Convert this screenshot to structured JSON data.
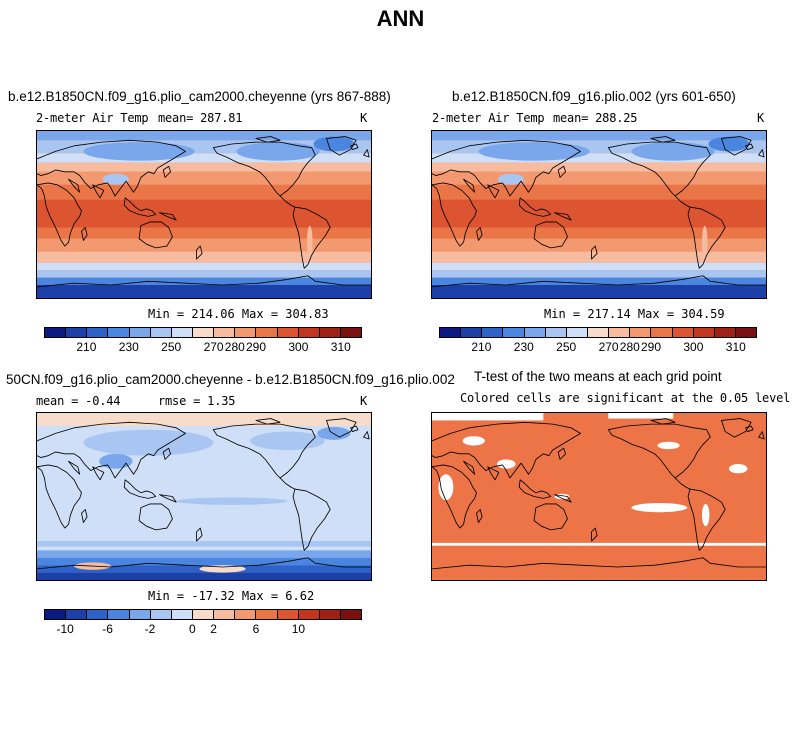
{
  "title": "ANN",
  "panels": {
    "p1": {
      "case": "b.e12.B1850CN.f09_g16.plio_cam2000.cheyenne (yrs 867-888)",
      "variable": "2-meter Air Temp",
      "mean": "mean= 287.81",
      "units": "K",
      "minmax": "Min = 214.06 Max = 304.83"
    },
    "p2": {
      "case": "b.e12.B1850CN.f09_g16.plio.002 (yrs 601-650)",
      "variable": "2-meter Air Temp",
      "mean": "mean= 288.25",
      "units": "K",
      "minmax": "Min = 217.14 Max = 304.59"
    },
    "p3": {
      "case": "50CN.f09_g16.plio_cam2000.cheyenne - b.e12.B1850CN.f09_g16.plio.002",
      "mean": "mean =  -0.44",
      "rmse": "rmse =   1.35",
      "units": "K",
      "minmax": "Min = -17.32 Max =   6.62"
    },
    "p4": {
      "title": "T-test of the two means at each grid point",
      "subtitle": "Colored cells are significant at the 0.05 level"
    }
  },
  "colorbars": {
    "temp_colors": [
      "#0a1a80",
      "#1c3fa8",
      "#2d63c8",
      "#4a86e0",
      "#7aa7ec",
      "#a9c6f2",
      "#cfdff7",
      "#f7dccb",
      "#f7bba0",
      "#f3996f",
      "#ea7547",
      "#dc5430",
      "#c23620",
      "#a02015",
      "#7a1010"
    ],
    "temp_ticks": [
      "210",
      "230",
      "250",
      "270",
      "280",
      "290",
      "300",
      "310"
    ],
    "diff_colors": [
      "#0a1a80",
      "#1c3fa8",
      "#2d63c8",
      "#4a86e0",
      "#7aa7ec",
      "#a9c6f2",
      "#cfdff7",
      "#f7dccb",
      "#f7bba0",
      "#f3996f",
      "#ea7547",
      "#dc5430",
      "#c23620",
      "#a02015",
      "#7a1010"
    ],
    "diff_ticks": [
      "-10",
      "-6",
      "-2",
      "0",
      "2",
      "6",
      "10"
    ]
  },
  "colors": {
    "ttest_fill": "#ec7446",
    "land_outline": "#000000"
  }
}
